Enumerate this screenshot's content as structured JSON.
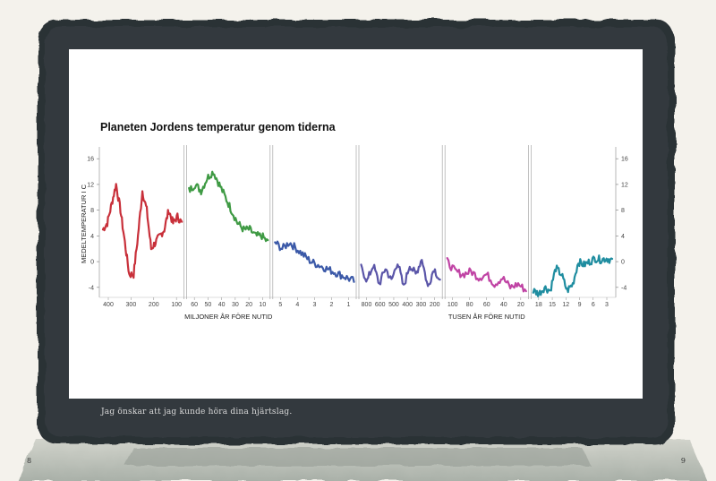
{
  "chart_data": {
    "type": "line",
    "title": "Planeten Jordens temperatur genom tiderna",
    "ylabel": "MEDELTEMPERATUR I C",
    "ylim": [
      -5,
      17
    ],
    "yticks": [
      16,
      12,
      8,
      4,
      0,
      -4
    ],
    "ytick_labels": [
      "16",
      "12",
      "8",
      "4",
      "0",
      "-4"
    ],
    "xlabel_left": "MILJONER ÅR FÖRE NUTID",
    "xlabel_right": "TUSEN ÅR FÖRE NUTID",
    "grid": false,
    "panels": [
      {
        "name": "",
        "color": "#c8303a",
        "x_ticks": [
          "400",
          "300",
          "200",
          "100"
        ],
        "series": [
          {
            "name": "",
            "y": [
              5,
              6,
              9,
              12,
              8,
              3,
              -2,
              -2,
              4,
              11,
              8,
              2,
              3,
              4,
              5,
              8,
              6,
              7,
              6
            ]
          }
        ]
      },
      {
        "name": "",
        "color": "#3f9a44",
        "x_ticks": [
          "60",
          "50",
          "40",
          "30",
          "20",
          "10"
        ],
        "series": [
          {
            "name": "",
            "y": [
              11,
              12,
              11,
              13,
              14,
              12,
              10,
              8,
              6,
              5,
              5,
              4,
              4,
              3
            ]
          }
        ]
      },
      {
        "name": "",
        "color": "#3b59a8",
        "x_ticks": [
          "5",
          "4",
          "3",
          "2",
          "1"
        ],
        "series": [
          {
            "name": "",
            "y": [
              3,
              2,
              3,
              2,
              1,
              0,
              -0.5,
              -1,
              -1.5,
              -2,
              -2.5,
              -3
            ]
          }
        ]
      },
      {
        "name": "",
        "color": "#5a55a8",
        "x_ticks": [
          "800",
          "600",
          "500",
          "400",
          "300",
          "200"
        ],
        "series": [
          {
            "name": "",
            "y": [
              -1,
              -3,
              -0.5,
              -3.5,
              -1,
              -3,
              0,
              -4,
              -0.5,
              -2,
              0.5,
              -4,
              -1,
              -3
            ]
          }
        ]
      },
      {
        "name": "",
        "color": "#c043a4",
        "x_ticks": [
          "100",
          "80",
          "60",
          "40",
          "20"
        ],
        "series": [
          {
            "name": "",
            "y": [
              0,
              -1.5,
              -2,
              -1.5,
              -2.5,
              -2,
              -3.5,
              -2.5,
              -4,
              -3.5,
              -4.5
            ]
          }
        ]
      },
      {
        "name": "",
        "color": "#1f8da0",
        "x_ticks": [
          "18",
          "15",
          "12",
          "9",
          "6",
          "3"
        ],
        "series": [
          {
            "name": "",
            "y": [
              -4.5,
              -5,
              -4,
              -4.5,
              -1,
              -2,
              -4.5,
              -3.5,
              0,
              -0.5,
              0,
              0.5,
              0.3,
              0.5,
              0.2
            ]
          }
        ]
      }
    ]
  },
  "caption": "Jag önskar att jag kunde höra dina hjärtslag.",
  "page_left": "8",
  "page_right": "9"
}
